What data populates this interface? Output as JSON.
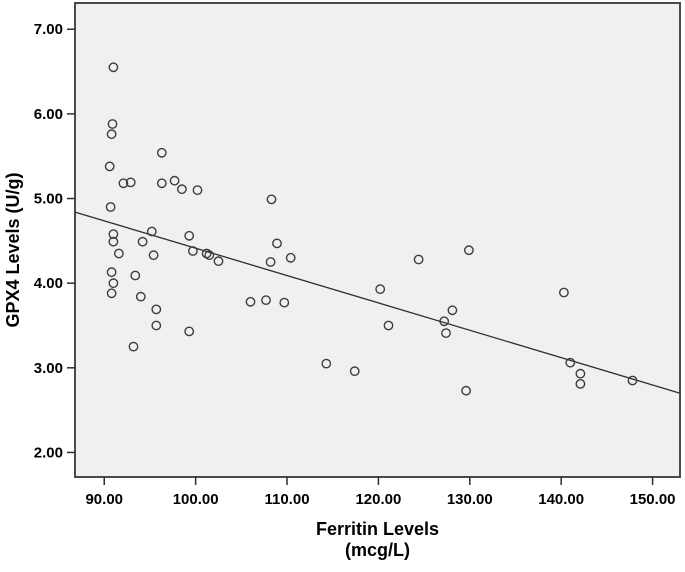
{
  "figure": {
    "background": "#ffffff",
    "plot_background": "#f0f0f0",
    "frame_color": "#4a4a4a",
    "tick_color": "#2e2e2e",
    "point_stroke_color": "#3d3d3d",
    "fit_line_color": "#2e2e2e",
    "text_color": "#000000"
  },
  "chart_data": {
    "type": "scatter",
    "title": "",
    "xlabel_line1": "Ferritin Levels",
    "xlabel_line2": "(mcg/L)",
    "ylabel": "GPX4 Levels (U/g)",
    "xlim": [
      86.8,
      153.0
    ],
    "ylim": [
      1.71,
      7.31
    ],
    "grid": false,
    "legend": "none",
    "x_ticks": [
      90,
      100,
      110,
      120,
      130,
      140,
      150
    ],
    "x_tick_labels": [
      "90.00",
      "100.00",
      "110.00",
      "120.00",
      "130.00",
      "140.00",
      "150.00"
    ],
    "y_ticks": [
      2,
      3,
      4,
      5,
      6,
      7
    ],
    "y_tick_labels": [
      "2.00",
      "3.00",
      "4.00",
      "5.00",
      "6.00",
      "7.00"
    ],
    "points": [
      [
        91.0,
        6.55
      ],
      [
        90.9,
        5.88
      ],
      [
        90.8,
        5.76
      ],
      [
        96.3,
        5.54
      ],
      [
        90.6,
        5.38
      ],
      [
        92.1,
        5.18
      ],
      [
        92.9,
        5.19
      ],
      [
        96.3,
        5.18
      ],
      [
        97.7,
        5.21
      ],
      [
        98.5,
        5.11
      ],
      [
        100.2,
        5.1
      ],
      [
        108.3,
        4.99
      ],
      [
        90.7,
        4.9
      ],
      [
        91.0,
        4.58
      ],
      [
        91.0,
        4.49
      ],
      [
        95.2,
        4.61
      ],
      [
        94.2,
        4.49
      ],
      [
        91.6,
        4.35
      ],
      [
        95.4,
        4.33
      ],
      [
        99.3,
        4.56
      ],
      [
        99.7,
        4.38
      ],
      [
        101.2,
        4.35
      ],
      [
        101.5,
        4.33
      ],
      [
        102.5,
        4.26
      ],
      [
        90.8,
        4.13
      ],
      [
        91.0,
        4.0
      ],
      [
        90.8,
        3.88
      ],
      [
        93.4,
        4.09
      ],
      [
        94.0,
        3.84
      ],
      [
        95.7,
        3.69
      ],
      [
        95.7,
        3.5
      ],
      [
        99.3,
        3.43
      ],
      [
        93.2,
        3.25
      ],
      [
        106.0,
        3.78
      ],
      [
        107.7,
        3.8
      ],
      [
        109.7,
        3.77
      ],
      [
        108.9,
        4.47
      ],
      [
        108.2,
        4.25
      ],
      [
        110.4,
        4.3
      ],
      [
        120.2,
        3.93
      ],
      [
        124.4,
        4.28
      ],
      [
        129.9,
        4.39
      ],
      [
        114.3,
        3.05
      ],
      [
        117.4,
        2.96
      ],
      [
        121.1,
        3.5
      ],
      [
        128.1,
        3.68
      ],
      [
        127.2,
        3.55
      ],
      [
        127.4,
        3.41
      ],
      [
        129.6,
        2.73
      ],
      [
        140.3,
        3.89
      ],
      [
        141.0,
        3.06
      ],
      [
        142.1,
        2.93
      ],
      [
        142.1,
        2.81
      ],
      [
        147.8,
        2.85
      ]
    ],
    "fit_line": {
      "x1": 86.8,
      "y1": 4.84,
      "x2": 153.0,
      "y2": 2.7
    }
  }
}
